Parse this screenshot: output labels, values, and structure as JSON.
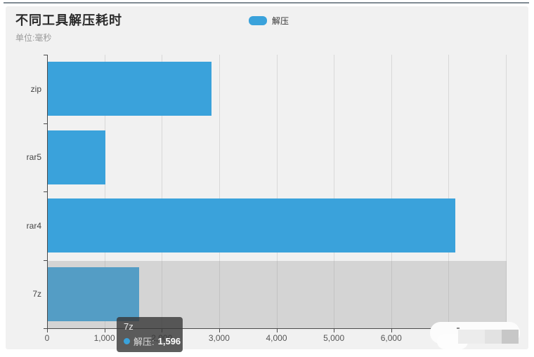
{
  "window": {
    "top_border_color": "#808b93",
    "card_background": "#f1f1f1"
  },
  "chart_data": {
    "type": "bar",
    "orientation": "horizontal",
    "title": "不同工具解压耗时",
    "unit_label": "单位:毫秒",
    "categories": [
      "zip",
      "rar5",
      "rar4",
      "7z"
    ],
    "series": [
      {
        "name": "解压",
        "color": "#3aa2db",
        "values": [
          2850,
          1000,
          7100,
          1596
        ]
      }
    ],
    "xlim": [
      0,
      8000
    ],
    "x_tick_labels": [
      "0",
      "1,000",
      "2,000",
      "3,000",
      "4,000",
      "5,000",
      "6,000"
    ],
    "x_tick_values": [
      0,
      1000,
      2000,
      3000,
      4000,
      5000,
      6000
    ],
    "x_grid_values": [
      1000,
      2000,
      3000,
      4000,
      5000,
      6000,
      7000,
      8000
    ],
    "grid": true,
    "legend_position": "top-center",
    "highlighted_category": "7z",
    "highlight_color": "rgba(145,145,145,0.30)"
  },
  "tooltip": {
    "category": "7z",
    "series": "解压",
    "value": "1,596",
    "value_numeric": 1596
  },
  "colors": {
    "bar": "#3aa2db",
    "axis": "#4a4a4a",
    "gridline": "#d8d8d8",
    "title": "#2b2b2b",
    "subtitle": "#9b9b9b"
  }
}
